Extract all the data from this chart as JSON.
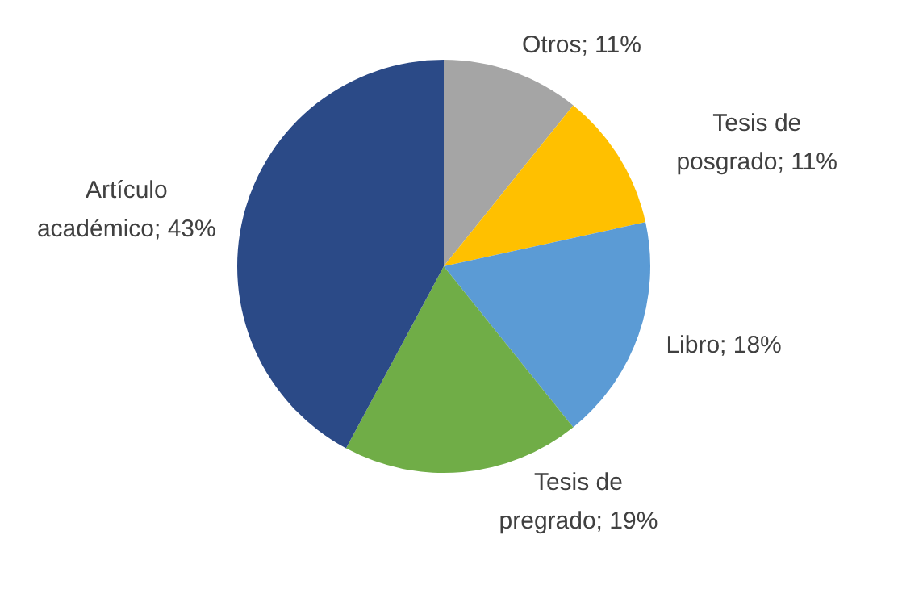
{
  "chart_data": {
    "type": "pie",
    "categories": [
      "Otros",
      "Tesis de posgrado",
      "Libro",
      "Tesis de pregrado",
      "Artículo académico"
    ],
    "values": [
      11,
      11,
      18,
      19,
      43
    ],
    "value_labels": [
      "11%",
      "11%",
      "18%",
      "19%",
      "43%"
    ],
    "colors": [
      "#a5a5a5",
      "#ffc000",
      "#5b9bd5",
      "#70ad47",
      "#2b4a87"
    ],
    "legend": false
  }
}
